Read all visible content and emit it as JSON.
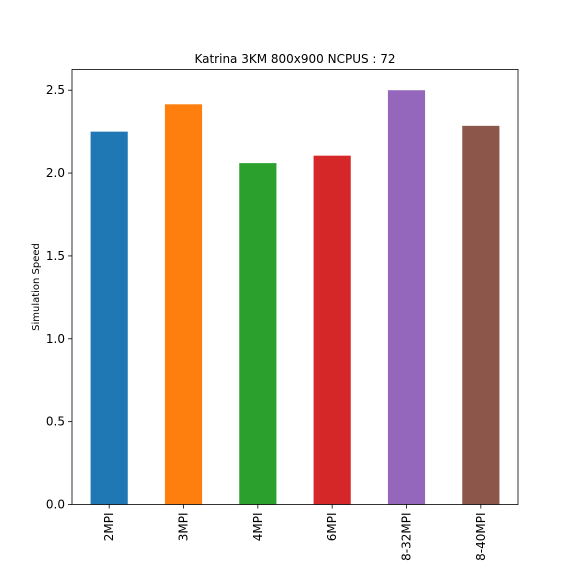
{
  "chart_data": {
    "type": "bar",
    "title": "Katrina 3KM 800x900 NCPUS : 72",
    "xlabel": "",
    "ylabel": "Simulation Speed",
    "categories": [
      "2MPI",
      "3MPI",
      "4MPI",
      "6MPI",
      "8-32MPI",
      "8-40MPI"
    ],
    "values": [
      2.25,
      2.415,
      2.06,
      2.105,
      2.5,
      2.285
    ],
    "colors": [
      "#1f77b4",
      "#ff7f0e",
      "#2ca02c",
      "#d62728",
      "#9467bd",
      "#8c564b"
    ],
    "ylim": [
      0,
      2.625
    ],
    "yticks": [
      "0.0",
      "0.5",
      "1.0",
      "1.5",
      "2.0",
      "2.5"
    ],
    "grid": false,
    "legend": "none"
  }
}
